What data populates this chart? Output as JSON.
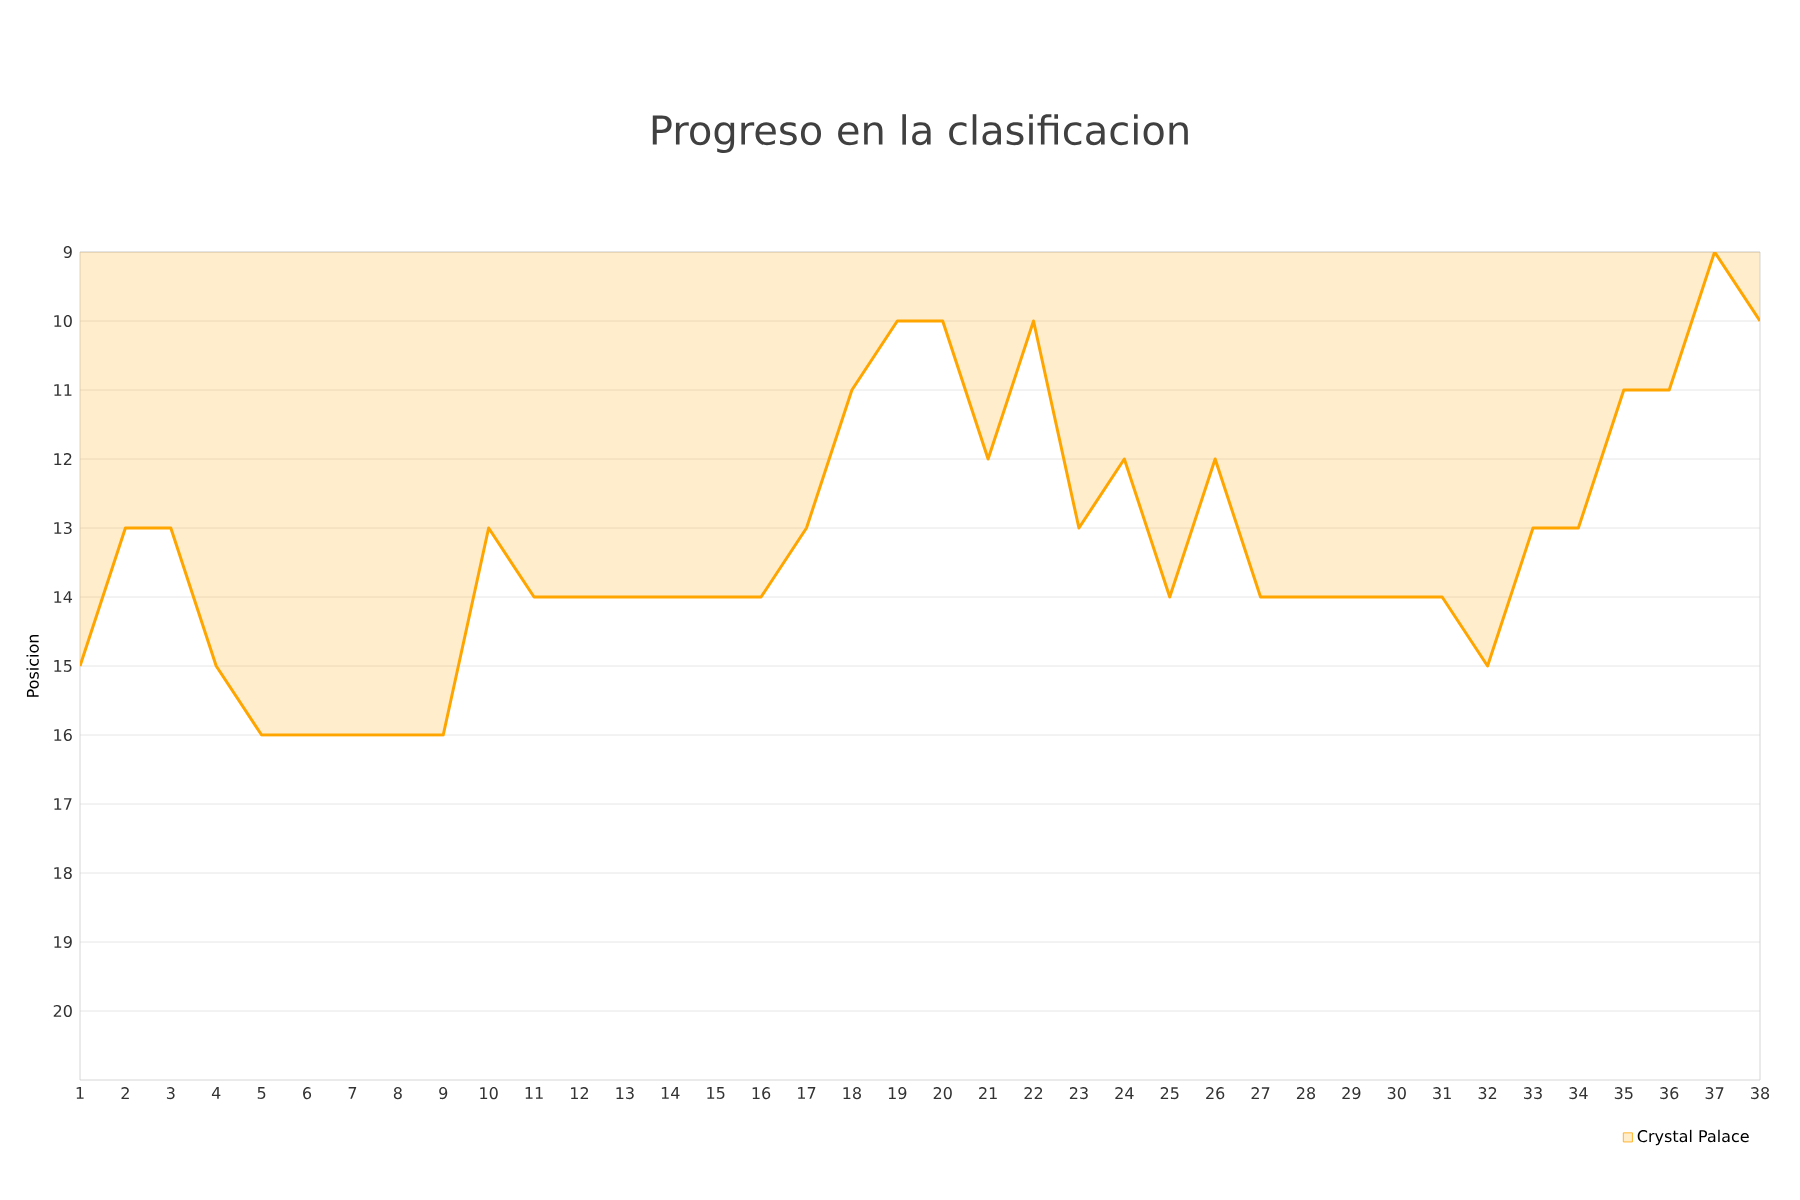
{
  "chart_data": {
    "type": "area",
    "title": "Progreso en la clasificacion",
    "ylabel": "Posicion",
    "x": [
      1,
      2,
      3,
      4,
      5,
      6,
      7,
      8,
      9,
      10,
      11,
      12,
      13,
      14,
      15,
      16,
      17,
      18,
      19,
      20,
      21,
      22,
      23,
      24,
      25,
      26,
      27,
      28,
      29,
      30,
      31,
      32,
      33,
      34,
      35,
      36,
      37,
      38
    ],
    "series": [
      {
        "name": "Crystal Palace",
        "color": "#ffa500",
        "values": [
          15,
          13,
          13,
          15,
          16,
          16,
          16,
          16,
          16,
          13,
          14,
          14,
          14,
          14,
          14,
          14,
          13,
          11,
          10,
          10,
          12,
          10,
          13,
          12,
          14,
          12,
          14,
          14,
          14,
          14,
          14,
          15,
          13,
          13,
          11,
          11,
          9,
          10
        ]
      }
    ],
    "xlim": [
      1,
      38
    ],
    "xticks": [
      1,
      2,
      3,
      4,
      5,
      6,
      7,
      8,
      9,
      10,
      11,
      12,
      13,
      14,
      15,
      16,
      17,
      18,
      19,
      20,
      21,
      22,
      23,
      24,
      25,
      26,
      27,
      28,
      29,
      30,
      31,
      32,
      33,
      34,
      35,
      36,
      37,
      38
    ],
    "ylim": [
      21,
      9
    ],
    "yticks": [
      9,
      10,
      11,
      12,
      13,
      14,
      15,
      16,
      17,
      18,
      19,
      20
    ],
    "grid": "y",
    "legend": "bottom right",
    "marker": "none",
    "line_style": "solid"
  }
}
